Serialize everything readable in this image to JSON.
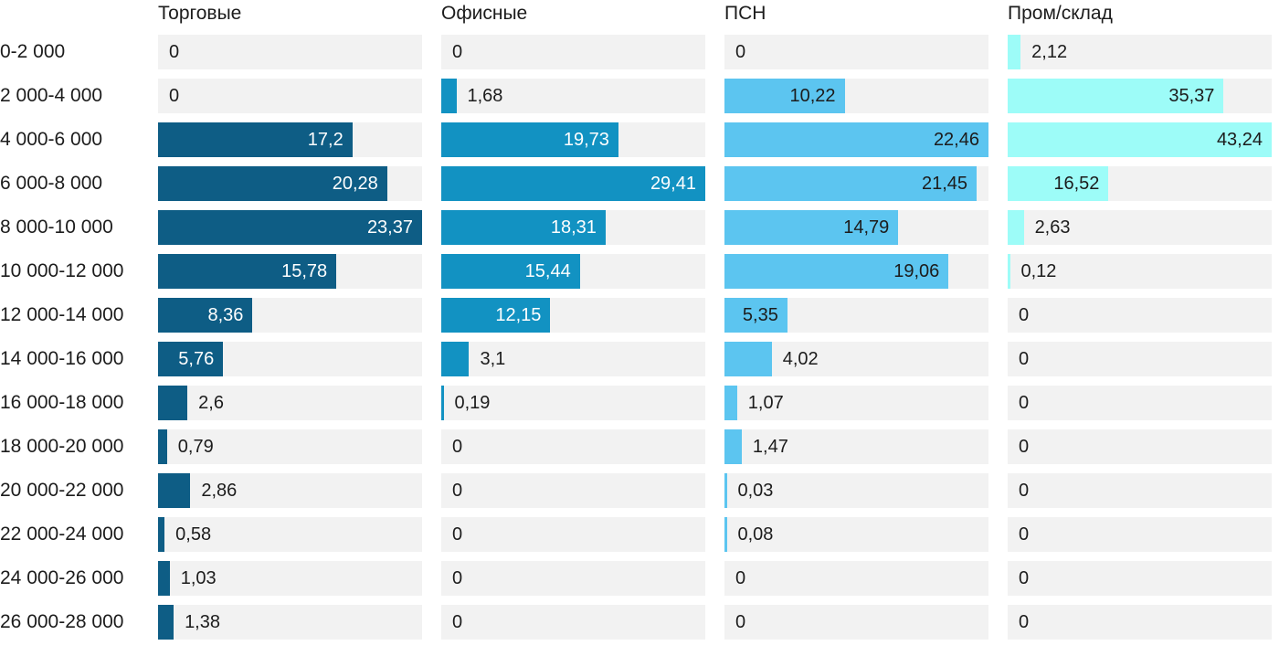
{
  "chart_data": {
    "type": "bar",
    "orientation": "horizontal",
    "title": "",
    "xlabel": "",
    "ylabel": "",
    "grid": false,
    "legend_position": "column-headers-top",
    "per_column_scale": true,
    "track_color": "#f2f2f2",
    "label_color": "#1c1c1c",
    "categories": [
      "0-2 000",
      "2 000-4 000",
      "4 000-6 000",
      "6 000-8 000",
      "8 000-10 000",
      "10 000-12 000",
      "12 000-14 000",
      "14 000-16 000",
      "16 000-18 000",
      "18 000-20 000",
      "20 000-22 000",
      "22 000-24 000",
      "24 000-26 000",
      "26 000-28 000"
    ],
    "series": [
      {
        "name": "Торговые",
        "color": "#0e5d85",
        "inside_label_color": "#ffffff",
        "values": [
          0,
          0,
          17.2,
          20.28,
          23.37,
          15.78,
          8.36,
          5.76,
          2.6,
          0.79,
          2.86,
          0.58,
          1.03,
          1.38
        ],
        "labels": [
          "0",
          "0",
          "17,2",
          "20,28",
          "23,37",
          "15,78",
          "8,36",
          "5,76",
          "2,6",
          "0,79",
          "2,86",
          "0,58",
          "1,03",
          "1,38"
        ]
      },
      {
        "name": "Офисные",
        "color": "#1292c2",
        "inside_label_color": "#ffffff",
        "values": [
          0,
          1.68,
          19.73,
          29.41,
          18.31,
          15.44,
          12.15,
          3.1,
          0.19,
          0,
          0,
          0,
          0,
          0
        ],
        "labels": [
          "0",
          "1,68",
          "19,73",
          "29,41",
          "18,31",
          "15,44",
          "12,15",
          "3,1",
          "0,19",
          "0",
          "0",
          "0",
          "0",
          "0"
        ]
      },
      {
        "name": "ПСН",
        "color": "#5cc5f0",
        "inside_label_color": "#1c1c1c",
        "values": [
          0,
          10.22,
          22.46,
          21.45,
          14.79,
          19.06,
          5.35,
          4.02,
          1.07,
          1.47,
          0.03,
          0.08,
          0,
          0
        ],
        "labels": [
          "0",
          "10,22",
          "22,46",
          "21,45",
          "14,79",
          "19,06",
          "5,35",
          "4,02",
          "1,07",
          "1,47",
          "0,03",
          "0,08",
          "0",
          "0"
        ]
      },
      {
        "name": "Пром/склад",
        "color": "#9dfcf8",
        "inside_label_color": "#1c1c1c",
        "values": [
          2.12,
          35.37,
          43.24,
          16.52,
          2.63,
          0.12,
          0,
          0,
          0,
          0,
          0,
          0,
          0,
          0
        ],
        "labels": [
          "2,12",
          "35,37",
          "43,24",
          "16,52",
          "2,63",
          "0,12",
          "0",
          "0",
          "0",
          "0",
          "0",
          "0",
          "0",
          "0"
        ]
      }
    ]
  }
}
